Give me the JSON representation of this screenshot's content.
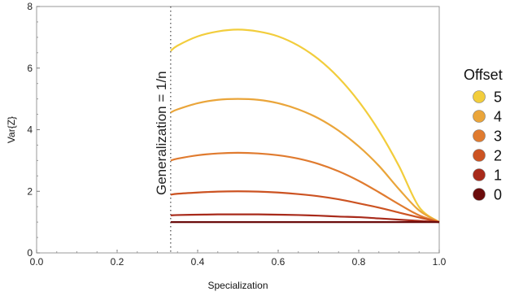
{
  "chart_data": {
    "type": "line",
    "xlabel": "Specialization",
    "ylabel": "Var{Z}",
    "xlim": [
      0.0,
      1.0
    ],
    "ylim": [
      0,
      8
    ],
    "x_ticks": [
      0.0,
      0.2,
      0.4,
      0.6,
      0.8,
      1.0
    ],
    "x_tick_labels": [
      "0.0",
      "0.2",
      "0.4",
      "0.6",
      "0.8",
      "1.0"
    ],
    "y_ticks": [
      0,
      2,
      4,
      6,
      8
    ],
    "y_tick_labels": [
      "0",
      "2",
      "4",
      "6",
      "8"
    ],
    "grid": false,
    "vertical_line": {
      "x": 0.333,
      "label": "Generalization = 1/n",
      "style": "dotted"
    },
    "legend": {
      "title": "Offset",
      "placement": "right"
    },
    "x": [
      0.333,
      0.35,
      0.4,
      0.45,
      0.5,
      0.55,
      0.6,
      0.65,
      0.7,
      0.75,
      0.8,
      0.85,
      0.9,
      0.95,
      1.0
    ],
    "series": [
      {
        "name": "5",
        "color": "#f2cd3c",
        "values": [
          6.56,
          6.73,
          7.03,
          7.19,
          7.25,
          7.19,
          7.03,
          6.73,
          6.29,
          5.69,
          4.92,
          3.97,
          2.82,
          1.49,
          1.0
        ]
      },
      {
        "name": "4",
        "color": "#eaa53a",
        "values": [
          4.56,
          4.66,
          4.86,
          4.97,
          5.0,
          4.97,
          4.86,
          4.66,
          4.37,
          3.97,
          3.46,
          2.83,
          2.07,
          1.38,
          1.0
        ]
      },
      {
        "name": "3",
        "color": "#e07b2f",
        "values": [
          3.0,
          3.06,
          3.17,
          3.23,
          3.25,
          3.23,
          3.17,
          3.06,
          2.89,
          2.65,
          2.34,
          1.97,
          1.58,
          1.22,
          1.0
        ]
      },
      {
        "name": "2",
        "color": "#cc5322",
        "values": [
          1.89,
          1.92,
          1.96,
          1.99,
          2.0,
          1.99,
          1.96,
          1.91,
          1.84,
          1.74,
          1.61,
          1.47,
          1.31,
          1.15,
          1.0
        ]
      },
      {
        "name": "1",
        "color": "#a82a1a",
        "values": [
          1.22,
          1.23,
          1.24,
          1.25,
          1.25,
          1.25,
          1.24,
          1.23,
          1.21,
          1.18,
          1.16,
          1.12,
          1.08,
          1.04,
          1.0
        ]
      },
      {
        "name": "0",
        "color": "#6b0c0c",
        "values": [
          1.0,
          1.0,
          1.0,
          1.0,
          1.0,
          1.0,
          1.0,
          1.0,
          1.0,
          1.0,
          1.0,
          1.0,
          1.0,
          1.0,
          1.0
        ]
      }
    ]
  }
}
